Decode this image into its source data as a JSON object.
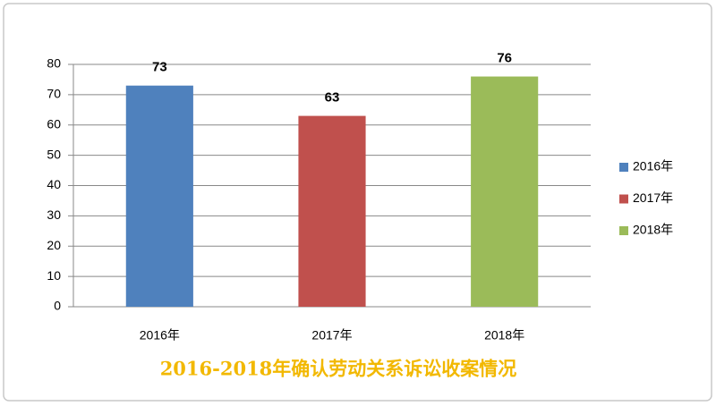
{
  "chart_data": {
    "type": "bar",
    "title": "2016-2018年确认劳动关系诉讼收案情况",
    "categories": [
      "2016年",
      "2017年",
      "2018年"
    ],
    "values": [
      73,
      63,
      76
    ],
    "colors": [
      "#4f81bd",
      "#c0504d",
      "#9bbb59"
    ],
    "ylim": [
      0,
      80
    ],
    "yticks": [
      0,
      10,
      20,
      30,
      40,
      50,
      60,
      70,
      80
    ],
    "grid": true,
    "legend": "right"
  }
}
